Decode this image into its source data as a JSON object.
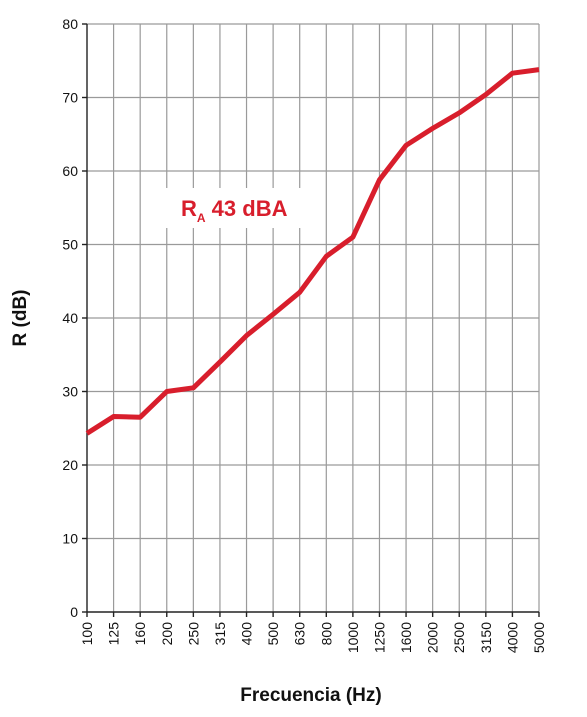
{
  "chart_data": {
    "type": "line",
    "xlabel": "Frecuencia (Hz)",
    "ylabel": "R (dB)",
    "categories": [
      "100",
      "125",
      "160",
      "200",
      "250",
      "315",
      "400",
      "500",
      "630",
      "800",
      "1000",
      "1250",
      "1600",
      "2000",
      "2500",
      "3150",
      "4000",
      "5000"
    ],
    "series": [
      {
        "values": [
          24.3,
          26.6,
          26.5,
          30.0,
          30.5,
          34.0,
          37.6,
          40.5,
          43.5,
          48.4,
          51.0,
          58.8,
          63.5,
          65.8,
          67.9,
          70.4,
          73.3,
          73.8
        ]
      }
    ],
    "ylim": [
      0,
      80
    ],
    "yticks": [
      0,
      10,
      20,
      30,
      40,
      50,
      60,
      70,
      80
    ],
    "grid": true,
    "annotation": {
      "main": "R",
      "sub": "A",
      "rest": " 43 dBA"
    },
    "colors": {
      "line": "#d81e2c",
      "grid": "#9a9a9a",
      "annotation": "#d81e2c"
    }
  }
}
